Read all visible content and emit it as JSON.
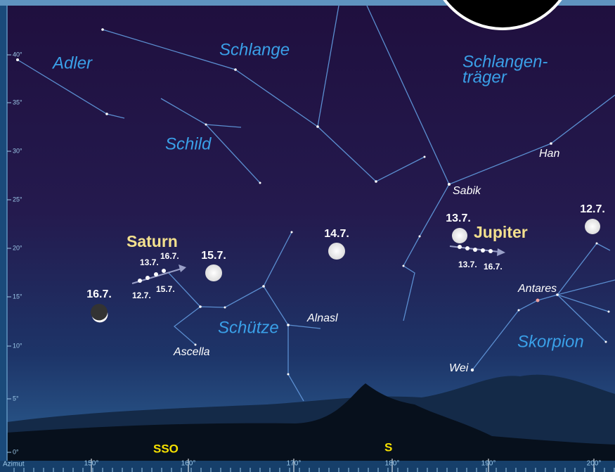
{
  "constellations": {
    "adler": "Adler",
    "schlange": "Schlange",
    "schild": "Schild",
    "schlangentraeger": [
      "Schlangen-",
      "träger"
    ],
    "schuetze": "Schütze",
    "skorpion": "Skorpion"
  },
  "stars": {
    "sabik": "Sabik",
    "han": "Han",
    "antares": "Antares",
    "alnasl": "Alnasl",
    "ascella": "Ascella",
    "wei": "Wei"
  },
  "saturn": {
    "name": "Saturn",
    "dates": [
      "13.7.",
      "16.7.",
      "12.7.",
      "15.7."
    ]
  },
  "jupiter": {
    "name": "Jupiter",
    "dates": [
      "13.7.",
      "16.7."
    ]
  },
  "moon": [
    "16.7.",
    "15.7.",
    "14.7.",
    "13.7.",
    "12.7."
  ],
  "altitude_labels": [
    "0°",
    "5°",
    "10°",
    "15°",
    "20°",
    "25°",
    "30°",
    "35°",
    "40°"
  ],
  "azimuth": {
    "title": "Azimut",
    "labels": [
      "150°",
      "160°",
      "170°",
      "180°",
      "190°",
      "200°"
    ]
  },
  "directions": [
    "SSO",
    "S"
  ]
}
